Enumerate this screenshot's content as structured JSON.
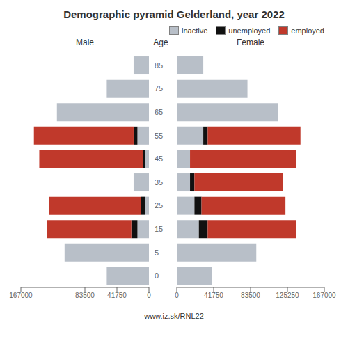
{
  "chart_data": [
    {
      "type": "bar",
      "orientation": "horizontal",
      "stacked": true,
      "title": "Demographic pyramid Gelderland, year 2022",
      "subtitle": "Male",
      "ylabel": "Age",
      "annotations": [
        "www.iz.sk/RNL22"
      ],
      "categories": [
        "0",
        "5",
        "15",
        "25",
        "35",
        "45",
        "55",
        "65",
        "75",
        "85"
      ],
      "series": [
        {
          "name": "inactive",
          "color": "#b8bfc8",
          "values": [
            55000,
            110000,
            15000,
            5000,
            20000,
            5000,
            15000,
            120000,
            55000,
            20000
          ]
        },
        {
          "name": "unemployed",
          "color": "#111111",
          "values": [
            0,
            0,
            8000,
            5000,
            0,
            3000,
            5000,
            0,
            0,
            0
          ]
        },
        {
          "name": "employed",
          "color": "#c0392b",
          "values": [
            0,
            0,
            110000,
            120000,
            0,
            135000,
            130000,
            0,
            0,
            0
          ]
        }
      ],
      "xlim": [
        167000,
        0
      ],
      "xticks": [
        167000,
        83500,
        41750,
        0
      ]
    },
    {
      "type": "bar",
      "orientation": "horizontal",
      "stacked": true,
      "subtitle": "Female",
      "legend": "upper right",
      "categories": [
        "0",
        "5",
        "15",
        "25",
        "35",
        "45",
        "55",
        "65",
        "75",
        "85"
      ],
      "series": [
        {
          "name": "inactive",
          "color": "#b8bfc8",
          "values": [
            40000,
            90000,
            25000,
            20000,
            15000,
            15000,
            30000,
            115000,
            80000,
            30000
          ]
        },
        {
          "name": "unemployed",
          "color": "#111111",
          "values": [
            0,
            0,
            10000,
            8000,
            5000,
            0,
            5000,
            0,
            0,
            0
          ]
        },
        {
          "name": "employed",
          "color": "#c0392b",
          "values": [
            0,
            0,
            100000,
            95000,
            100000,
            120000,
            105000,
            0,
            0,
            0
          ]
        }
      ],
      "xlim": [
        0,
        167000
      ],
      "xticks": [
        0,
        41750,
        83500,
        125250,
        167000
      ]
    }
  ]
}
